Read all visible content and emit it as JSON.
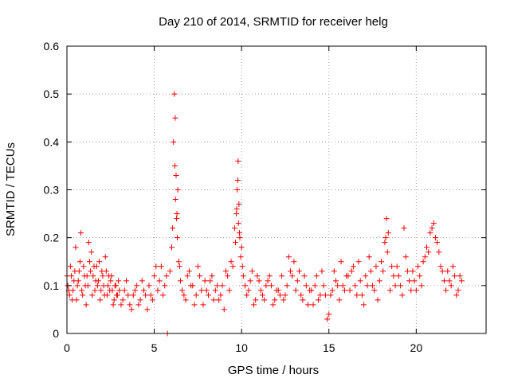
{
  "chart_data": {
    "type": "scatter",
    "title": "Day 210 of 2014, SRMTID for receiver helg",
    "xlabel": "GPS time / hours",
    "ylabel": "SRMTID / TECUs",
    "xlim": [
      0,
      24
    ],
    "ylim": [
      0,
      0.6
    ],
    "xticks": [
      0,
      5,
      10,
      15,
      20
    ],
    "xtick_labels": [
      "0",
      "5",
      "10",
      "15",
      "20"
    ],
    "yticks": [
      0,
      0.1,
      0.2,
      0.3,
      0.4,
      0.5,
      0.6
    ],
    "ytick_labels": [
      "0",
      "0.1",
      "0.2",
      "0.3",
      "0.4",
      "0.5",
      "0.6"
    ],
    "grid": true,
    "marker": "+",
    "series": [
      {
        "name": "SRMTID",
        "color": "#ff0000",
        "x": [
          0.0,
          0.1,
          0.2,
          0.3,
          0.4,
          0.5,
          0.6,
          0.7,
          0.8,
          0.9,
          1.0,
          1.1,
          1.2,
          1.3,
          1.4,
          1.5,
          1.6,
          1.7,
          1.8,
          1.9,
          2.0,
          2.1,
          2.2,
          2.3,
          2.4,
          2.5,
          2.6,
          2.7,
          2.8,
          2.9,
          3.0,
          3.2,
          3.4,
          3.6,
          3.8,
          4.0,
          4.2,
          4.4,
          4.6,
          4.8,
          5.0,
          5.2,
          5.4,
          5.6,
          5.75,
          5.9,
          6.0,
          6.1,
          6.15,
          6.2,
          6.25,
          6.3,
          6.35,
          6.4,
          6.5,
          6.6,
          6.8,
          7.0,
          7.2,
          7.4,
          7.6,
          7.8,
          8.0,
          8.2,
          8.4,
          8.6,
          8.8,
          9.0,
          9.2,
          9.4,
          9.5,
          9.6,
          9.7,
          9.75,
          9.8,
          9.85,
          9.9,
          10.0,
          10.1,
          10.2,
          10.4,
          10.6,
          10.8,
          11.0,
          11.2,
          11.4,
          11.6,
          11.8,
          12.0,
          12.2,
          12.4,
          12.6,
          12.8,
          13.0,
          13.2,
          13.4,
          13.6,
          13.8,
          14.0,
          14.2,
          14.4,
          14.6,
          14.8,
          15.0,
          15.2,
          15.4,
          15.6,
          15.8,
          16.0,
          16.2,
          16.4,
          16.6,
          16.8,
          17.0,
          17.2,
          17.4,
          17.6,
          17.8,
          18.0,
          18.2,
          18.3,
          18.4,
          18.6,
          18.8,
          19.0,
          19.2,
          19.4,
          19.6,
          19.8,
          20.0,
          20.2,
          20.4,
          20.6,
          20.8,
          21.0,
          21.2,
          21.4,
          21.6,
          21.8,
          22.0,
          22.2,
          22.4,
          22.6,
          0.05,
          0.15,
          0.25,
          0.35,
          0.45,
          0.55,
          0.65,
          0.75,
          0.85,
          0.95,
          1.05,
          1.15,
          1.25,
          1.35,
          1.45,
          1.55,
          1.65,
          1.75,
          1.85,
          1.95,
          2.05,
          2.15,
          2.25,
          2.35,
          2.45,
          2.55,
          2.65,
          2.75,
          2.85,
          2.95,
          3.1,
          3.3,
          3.5,
          3.7,
          3.9,
          4.1,
          4.3,
          4.5,
          4.7,
          4.9,
          5.1,
          5.3,
          5.5,
          5.7,
          6.05,
          6.18,
          6.22,
          6.28,
          6.32,
          6.45,
          6.7,
          6.9,
          7.1,
          7.3,
          7.5,
          7.7,
          7.9,
          8.1,
          8.3,
          8.5,
          8.7,
          8.9,
          9.1,
          9.3,
          9.65,
          9.72,
          9.78,
          9.82,
          9.88,
          9.95,
          10.05,
          10.3,
          10.5,
          10.7,
          10.9,
          11.1,
          11.3,
          11.5,
          11.7,
          11.9,
          12.1,
          12.3,
          12.5,
          12.7,
          12.9,
          13.1,
          13.3,
          13.5,
          13.7,
          13.9,
          14.1,
          14.3,
          14.5,
          14.7,
          14.9,
          15.1,
          15.3,
          15.5,
          15.7,
          15.9,
          16.1,
          16.3,
          16.5,
          16.7,
          16.9,
          17.1,
          17.3,
          17.5,
          17.7,
          17.9,
          18.1,
          18.25,
          18.35,
          18.5,
          18.7,
          18.9,
          19.1,
          19.3,
          19.5,
          19.7,
          19.9,
          20.1,
          20.3,
          20.5,
          20.7,
          20.9,
          21.1,
          21.3,
          21.5,
          21.7,
          21.9,
          22.1,
          22.3,
          22.5
        ],
        "y": [
          0.12,
          0.09,
          0.14,
          0.07,
          0.11,
          0.18,
          0.1,
          0.13,
          0.21,
          0.08,
          0.12,
          0.06,
          0.1,
          0.15,
          0.17,
          0.12,
          0.09,
          0.14,
          0.11,
          0.07,
          0.13,
          0.1,
          0.16,
          0.08,
          0.12,
          0.11,
          0.09,
          0.07,
          0.1,
          0.08,
          0.09,
          0.07,
          0.11,
          0.06,
          0.08,
          0.1,
          0.07,
          0.09,
          0.05,
          0.08,
          0.12,
          0.09,
          0.14,
          0.1,
          0.0,
          0.13,
          0.18,
          0.4,
          0.5,
          0.45,
          0.33,
          0.25,
          0.3,
          0.15,
          0.11,
          0.09,
          0.07,
          0.13,
          0.1,
          0.08,
          0.12,
          0.06,
          0.09,
          0.11,
          0.07,
          0.1,
          0.08,
          0.05,
          0.12,
          0.15,
          0.14,
          0.22,
          0.25,
          0.3,
          0.36,
          0.27,
          0.2,
          0.18,
          0.12,
          0.1,
          0.09,
          0.13,
          0.07,
          0.11,
          0.08,
          0.1,
          0.12,
          0.06,
          0.09,
          0.08,
          0.07,
          0.1,
          0.13,
          0.15,
          0.11,
          0.08,
          0.12,
          0.06,
          0.09,
          0.1,
          0.07,
          0.13,
          0.08,
          0.04,
          0.09,
          0.11,
          0.07,
          0.1,
          0.12,
          0.09,
          0.14,
          0.08,
          0.11,
          0.06,
          0.1,
          0.13,
          0.09,
          0.07,
          0.15,
          0.19,
          0.24,
          0.21,
          0.14,
          0.1,
          0.12,
          0.08,
          0.16,
          0.11,
          0.13,
          0.09,
          0.12,
          0.15,
          0.18,
          0.21,
          0.23,
          0.19,
          0.14,
          0.11,
          0.13,
          0.1,
          0.12,
          0.09,
          0.11,
          0.1,
          0.08,
          0.12,
          0.09,
          0.13,
          0.07,
          0.11,
          0.15,
          0.09,
          0.14,
          0.1,
          0.12,
          0.19,
          0.13,
          0.08,
          0.14,
          0.11,
          0.1,
          0.15,
          0.09,
          0.12,
          0.08,
          0.13,
          0.1,
          0.09,
          0.12,
          0.06,
          0.1,
          0.08,
          0.11,
          0.06,
          0.09,
          0.08,
          0.05,
          0.09,
          0.06,
          0.11,
          0.08,
          0.1,
          0.07,
          0.14,
          0.11,
          0.08,
          0.12,
          0.22,
          0.35,
          0.28,
          0.24,
          0.2,
          0.14,
          0.08,
          0.12,
          0.1,
          0.06,
          0.14,
          0.09,
          0.11,
          0.08,
          0.12,
          0.09,
          0.07,
          0.1,
          0.13,
          0.09,
          0.19,
          0.26,
          0.32,
          0.23,
          0.21,
          0.16,
          0.14,
          0.08,
          0.11,
          0.06,
          0.12,
          0.09,
          0.07,
          0.11,
          0.1,
          0.07,
          0.09,
          0.12,
          0.08,
          0.16,
          0.12,
          0.09,
          0.13,
          0.07,
          0.1,
          0.09,
          0.06,
          0.12,
          0.08,
          0.1,
          0.03,
          0.08,
          0.13,
          0.1,
          0.15,
          0.09,
          0.12,
          0.13,
          0.1,
          0.15,
          0.08,
          0.12,
          0.16,
          0.1,
          0.14,
          0.11,
          0.13,
          0.2,
          0.17,
          0.09,
          0.12,
          0.14,
          0.1,
          0.22,
          0.13,
          0.09,
          0.11,
          0.14,
          0.1,
          0.16,
          0.17,
          0.22,
          0.2,
          0.17,
          0.13,
          0.09,
          0.11,
          0.14,
          0.08,
          0.12
        ]
      }
    ]
  }
}
